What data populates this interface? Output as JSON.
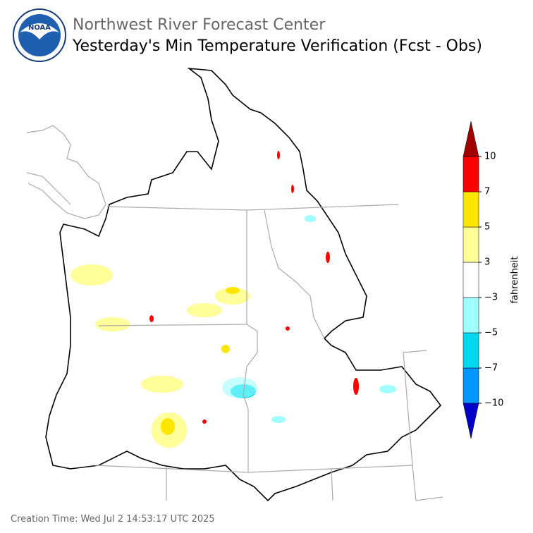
{
  "header": {
    "org": "Northwest River Forecast Center",
    "title": "Yesterday's Min Temperature Verification (Fcst - Obs)",
    "logo": "NOAA"
  },
  "colorbar": {
    "label": "fahrenheit",
    "ticks": [
      {
        "value": -10,
        "label": "−10"
      },
      {
        "value": -7,
        "label": "−7"
      },
      {
        "value": -5,
        "label": "−5"
      },
      {
        "value": -3,
        "label": "−3"
      },
      3,
      5,
      7,
      10
    ],
    "colors": [
      "#0096ff",
      "#00d8f0",
      "#a0ffff",
      "#ffffff",
      "#ffff99",
      "#ffe600",
      "#ff0000"
    ],
    "extend_colors": [
      "#0000c8",
      "#a00000"
    ]
  },
  "footer": "Creation Time: Wed Jul 2 14:53:17 UTC 2025"
}
